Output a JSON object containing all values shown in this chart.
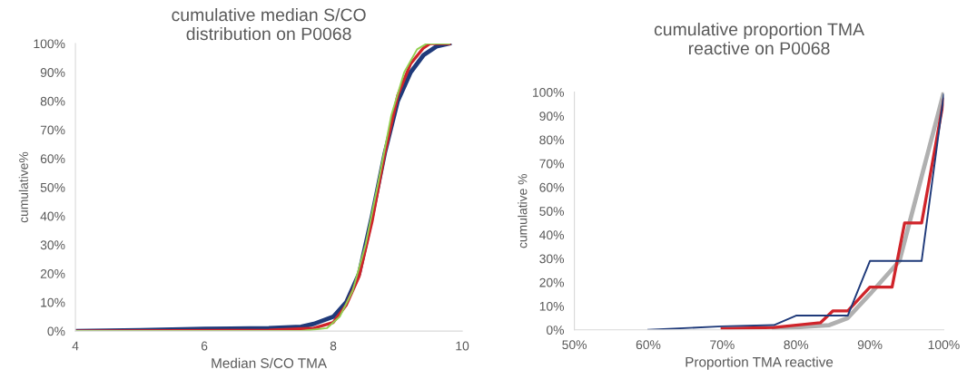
{
  "chart_data": [
    {
      "type": "line",
      "title": "cumulative median S/CO\ndistribution on P0068",
      "xlabel": "Median S/CO TMA",
      "ylabel": "cumulative%",
      "xlim": [
        4,
        10
      ],
      "xticks": [
        4,
        6,
        8,
        10
      ],
      "ylim": [
        0,
        100
      ],
      "yticks": [
        {
          "value": 0,
          "label": "0%"
        },
        {
          "value": 10,
          "label": "10%"
        },
        {
          "value": 20,
          "label": "20%"
        },
        {
          "value": 30,
          "label": "30%"
        },
        {
          "value": 40,
          "label": "40%"
        },
        {
          "value": 50,
          "label": "50%"
        },
        {
          "value": 60,
          "label": "60%"
        },
        {
          "value": 70,
          "label": "70%"
        },
        {
          "value": 80,
          "label": "80%"
        },
        {
          "value": 90,
          "label": "90%"
        },
        {
          "value": 100,
          "label": "100%"
        }
      ],
      "series": [
        {
          "color": "#1f3a7a",
          "x": [
            4,
            5,
            6,
            7,
            7.5,
            7.7,
            8,
            8.2,
            8.4,
            8.6,
            8.8,
            9.0,
            9.2,
            9.4,
            9.6,
            9.8
          ],
          "values": [
            0,
            0.3,
            0.8,
            1,
            1.5,
            2.5,
            5,
            10,
            20,
            40,
            62,
            80,
            90,
            96,
            99,
            100
          ]
        },
        {
          "color": "#d0242a",
          "x": [
            4,
            7,
            7.7,
            8,
            8.2,
            8.4,
            8.6,
            8.8,
            9.0,
            9.2,
            9.4,
            9.5,
            9.8
          ],
          "values": [
            0,
            0.3,
            1,
            3,
            9,
            19,
            38,
            62,
            82,
            93,
            98.5,
            100,
            100
          ]
        },
        {
          "color": "#92d050",
          "x": [
            4,
            7.5,
            7.9,
            8.1,
            8.3,
            8.5,
            8.7,
            8.9,
            9.1,
            9.3,
            9.45,
            9.8
          ],
          "values": [
            0,
            0,
            1,
            5,
            14,
            30,
            52,
            75,
            90,
            98,
            100,
            100
          ]
        }
      ]
    },
    {
      "type": "line",
      "title": "cumulative proportion TMA\nreactive on P0068",
      "xlabel": "Proportion TMA reactive",
      "ylabel": "cumulative %",
      "xlim": [
        50,
        100
      ],
      "xticks": [
        {
          "value": 50,
          "label": "50%"
        },
        {
          "value": 60,
          "label": "60%"
        },
        {
          "value": 70,
          "label": "70%"
        },
        {
          "value": 80,
          "label": "80%"
        },
        {
          "value": 90,
          "label": "90%"
        },
        {
          "value": 100,
          "label": "100%"
        }
      ],
      "ylim": [
        0,
        100
      ],
      "yticks": [
        {
          "value": 0,
          "label": "0%"
        },
        {
          "value": 10,
          "label": "10%"
        },
        {
          "value": 20,
          "label": "20%"
        },
        {
          "value": 30,
          "label": "30%"
        },
        {
          "value": 40,
          "label": "40%"
        },
        {
          "value": 50,
          "label": "50%"
        },
        {
          "value": 60,
          "label": "60%"
        },
        {
          "value": 70,
          "label": "70%"
        },
        {
          "value": 80,
          "label": "80%"
        },
        {
          "value": 90,
          "label": "90%"
        },
        {
          "value": 100,
          "label": "100%"
        }
      ],
      "series": [
        {
          "color": "#b0b0b0",
          "x": [
            77,
            84.5,
            87,
            90,
            94,
            100
          ],
          "values": [
            0.5,
            2,
            5,
            15,
            29,
            100
          ]
        },
        {
          "color": "#d0242a",
          "x": [
            70,
            77,
            83.3,
            85,
            87,
            90,
            93,
            94.7,
            97,
            100
          ],
          "values": [
            0.5,
            1,
            3,
            8,
            8,
            18,
            18,
            45,
            45,
            97
          ]
        },
        {
          "color": "#1f3a7a",
          "x": [
            60,
            70,
            77,
            80,
            87,
            90,
            97,
            100
          ],
          "values": [
            0,
            1.5,
            2,
            6,
            6,
            29,
            29,
            99
          ]
        }
      ]
    }
  ]
}
